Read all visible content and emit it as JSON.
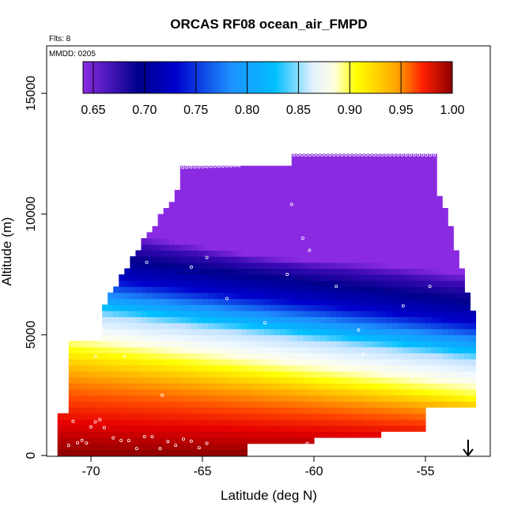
{
  "chart_data": {
    "type": "heatmap",
    "title": "ORCAS RF08 ocean_air_FMPD",
    "flts_label": "Flts: 8",
    "date_label": "MMDD: 0205",
    "xlabel": "Latitude (deg N)",
    "ylabel": "Altitude (m)",
    "xlim": [
      -72,
      -52
    ],
    "ylim": [
      0,
      16500
    ],
    "x_ticks": [
      -70,
      -65,
      -60,
      -55
    ],
    "y_ticks": [
      0,
      5000,
      10000,
      15000
    ],
    "colorbar": {
      "min": 0.64,
      "max": 1.0,
      "ticks": [
        0.65,
        0.7,
        0.75,
        0.8,
        0.85,
        0.9,
        0.95,
        1.0
      ],
      "tick_labels": [
        "0.65",
        "0.70",
        "0.75",
        "0.80",
        "0.85",
        "0.90",
        "0.95",
        "1.00"
      ],
      "colors": [
        "#8a2be2",
        "#00008b",
        "#0000cd",
        "#1e90ff",
        "#00bfff",
        "#e0f0ff",
        "#ffffe0",
        "#ffff00",
        "#ffa500",
        "#ff4500",
        "#ff0000",
        "#8b0000"
      ]
    },
    "grid": false,
    "annotation": "downward arrow near -53 deg N at the surface",
    "field": {
      "x_range": [
        -71.5,
        -52.8
      ],
      "y_range": [
        0,
        12500
      ],
      "description": "low-altitude red values (~0.95-1.0) in the south, yellow band (~0.88) around 4-5 km, blue (~0.75) mid-troposphere, deep blue/violet (~0.66-0.68) near 10 km at -61 deg N"
    }
  }
}
